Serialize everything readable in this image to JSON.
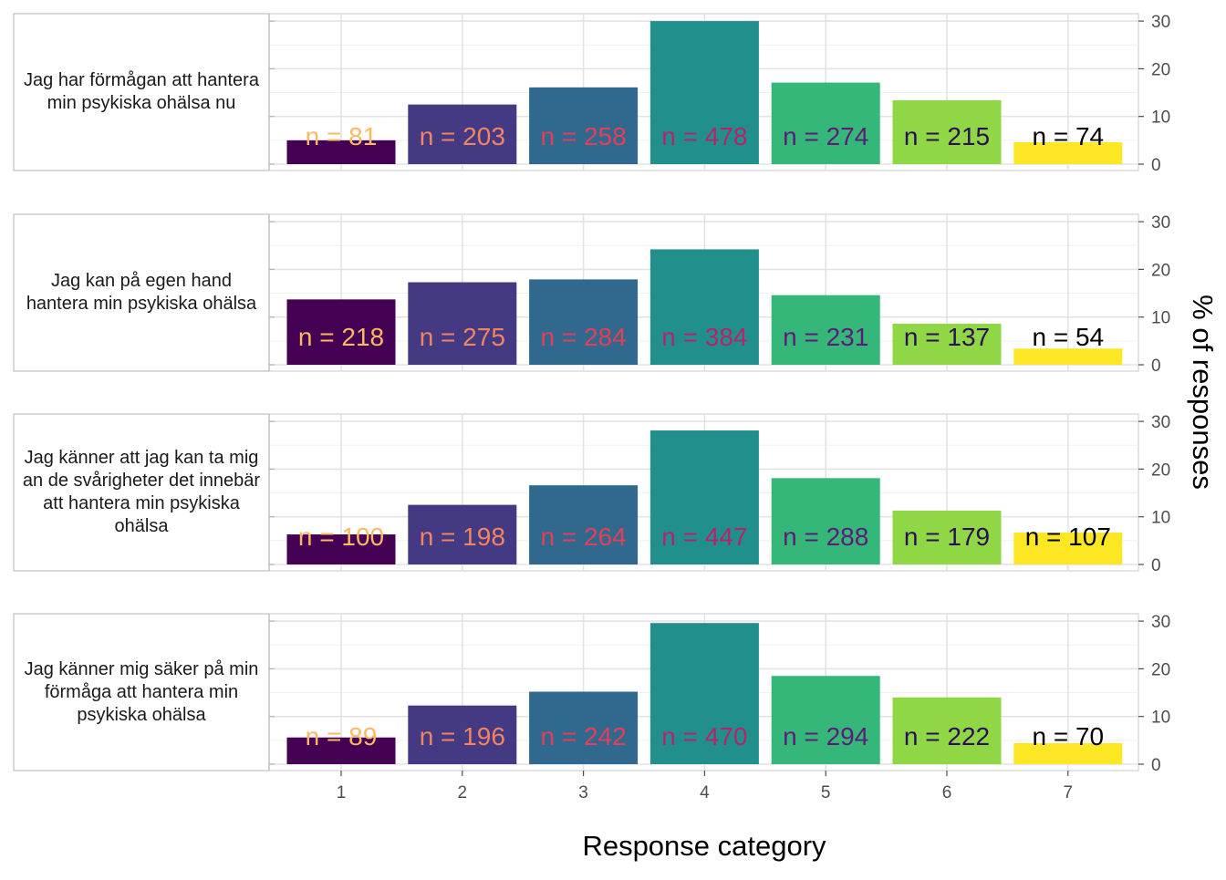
{
  "chart_data": {
    "type": "bar",
    "xlabel": "Response category",
    "ylabel": "% of responses",
    "categories": [
      "1",
      "2",
      "3",
      "4",
      "5",
      "6",
      "7"
    ],
    "ylim": [
      0,
      30
    ],
    "yticks": [
      0,
      10,
      20,
      30
    ],
    "grid": true,
    "colors": [
      "#440154",
      "#443A83",
      "#31688E",
      "#21908C",
      "#35B779",
      "#8FD744",
      "#FDE725"
    ],
    "label_colors": [
      "#FDB863",
      "#F4845F",
      "#E23F5A",
      "#B5246B",
      "#5C1D7A",
      "#2B0F54",
      "#000000"
    ],
    "panels": [
      {
        "title": "Jag har förmågan att hantera min psykiska ohälsa nu",
        "values": [
          5.0,
          12.5,
          16.1,
          30.0,
          17.1,
          13.4,
          4.6
        ],
        "labels": [
          "n = 81",
          "n = 203",
          "n = 258",
          "n = 478",
          "n = 274",
          "n = 215",
          "n = 74"
        ]
      },
      {
        "title": "Jag kan på egen hand hantera min psykiska ohälsa",
        "values": [
          13.7,
          17.3,
          17.9,
          24.2,
          14.6,
          8.6,
          3.4
        ],
        "labels": [
          "n = 218",
          "n = 275",
          "n = 284",
          "n = 384",
          "n = 231",
          "n = 137",
          "n = 54"
        ]
      },
      {
        "title": "Jag känner att jag kan ta mig an de svårigheter det innebär att hantera min psykiska ohälsa",
        "values": [
          6.3,
          12.5,
          16.6,
          28.1,
          18.1,
          11.3,
          6.7
        ],
        "labels": [
          "n = 100",
          "n = 198",
          "n = 264",
          "n = 447",
          "n = 288",
          "n = 179",
          "n = 107"
        ]
      },
      {
        "title": "Jag känner mig säker på min förmåga att hantera min psykiska ohälsa",
        "values": [
          5.6,
          12.3,
          15.2,
          29.6,
          18.5,
          14.0,
          4.4
        ],
        "labels": [
          "n = 89",
          "n = 196",
          "n = 242",
          "n = 470",
          "n = 294",
          "n = 222",
          "n = 70"
        ]
      }
    ]
  }
}
